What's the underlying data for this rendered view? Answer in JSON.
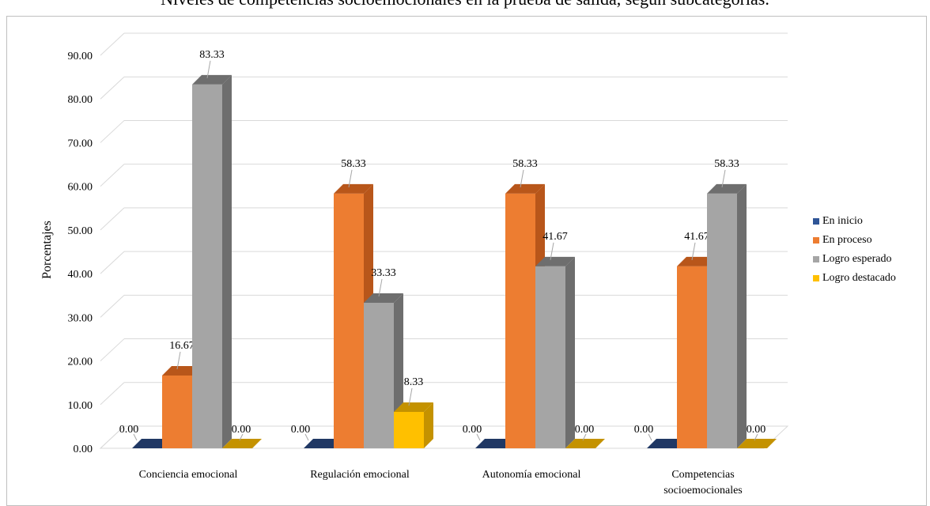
{
  "title": "Niveles de competencias socioemocionales en la prueba de salida, según subcategorías.",
  "chart_data": {
    "type": "bar",
    "ylabel": "Porcentajes",
    "ylim": [
      0,
      90
    ],
    "yticks": [
      "0.00",
      "10.00",
      "20.00",
      "30.00",
      "40.00",
      "50.00",
      "60.00",
      "70.00",
      "80.00",
      "90.00"
    ],
    "grid": true,
    "legend_position": "right",
    "categories": [
      "Conciencia emocional",
      "Regulación emocional",
      "Autonomía emocional",
      "Competencias socioemocionales"
    ],
    "series": [
      {
        "name": "En inicio",
        "color": "#2f5597",
        "side": "#203864",
        "values": [
          0,
          0,
          0,
          0
        ],
        "labels": [
          "0.00",
          "0.00",
          "0.00",
          "0.00"
        ]
      },
      {
        "name": "En proceso",
        "color": "#ed7d31",
        "side": "#b8561a",
        "values": [
          16.67,
          58.33,
          58.33,
          41.67
        ],
        "labels": [
          "16.67",
          "58.33",
          "58.33",
          "41.67"
        ]
      },
      {
        "name": "Logro esperado",
        "color": "#a5a5a5",
        "side": "#6e6e6e",
        "values": [
          83.33,
          33.33,
          41.67,
          58.33
        ],
        "labels": [
          "83.33",
          "33.33",
          "41.67",
          "58.33"
        ]
      },
      {
        "name": "Logro destacado",
        "color": "#ffc000",
        "side": "#c49200",
        "values": [
          0,
          8.33,
          0,
          0
        ],
        "labels": [
          "0.00",
          "8.33",
          "0.00",
          "0.00"
        ]
      }
    ]
  }
}
